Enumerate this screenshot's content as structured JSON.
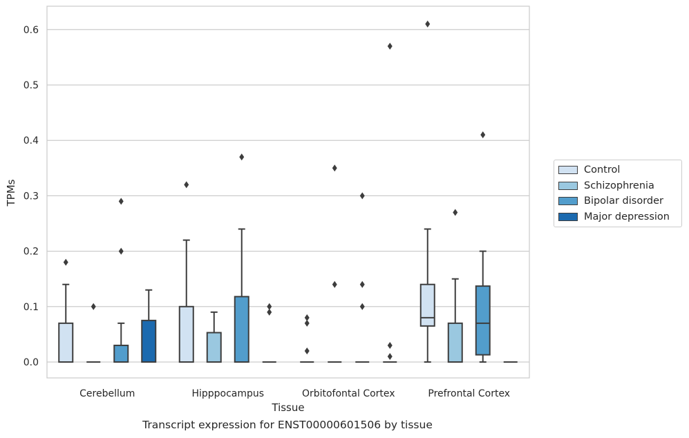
{
  "chart_data": {
    "type": "box",
    "title": "",
    "xlabel": "Tissue",
    "ylabel": "TPMs",
    "ylim": [
      -0.03,
      0.645
    ],
    "yticks": [
      0.0,
      0.1,
      0.2,
      0.3,
      0.4,
      0.5,
      0.6
    ],
    "ytick_labels": [
      "0.0",
      "0.1",
      "0.2",
      "0.3",
      "0.4",
      "0.5",
      "0.6"
    ],
    "grid": "horizontal",
    "legend_position": "right",
    "categories": [
      "Cerebellum",
      "Hipppocampus",
      "Orbitofontal Cortex",
      "Prefrontal Cortex"
    ],
    "series": [
      {
        "name": "Control",
        "color": "#d1e2f2",
        "boxes": [
          {
            "whislo": 0.0,
            "q1": 0.0,
            "med": 0.0,
            "q3": 0.07,
            "whishi": 0.14,
            "fliers": [
              0.18
            ]
          },
          {
            "whislo": 0.0,
            "q1": 0.0,
            "med": 0.0,
            "q3": 0.1,
            "whishi": 0.22,
            "fliers": [
              0.32
            ]
          },
          {
            "whislo": 0.0,
            "q1": 0.0,
            "med": 0.0,
            "q3": 0.0,
            "whishi": 0.0,
            "fliers": [
              0.02,
              0.07,
              0.08
            ]
          },
          {
            "whislo": 0.0,
            "q1": 0.065,
            "med": 0.08,
            "q3": 0.14,
            "whishi": 0.24,
            "fliers": [
              0.61
            ]
          }
        ]
      },
      {
        "name": "Schizophrenia",
        "color": "#9ac8e0",
        "boxes": [
          {
            "whislo": 0.0,
            "q1": 0.0,
            "med": 0.0,
            "q3": 0.0,
            "whishi": 0.0,
            "fliers": [
              0.1
            ]
          },
          {
            "whislo": 0.0,
            "q1": 0.0,
            "med": 0.0,
            "q3": 0.053,
            "whishi": 0.09,
            "fliers": []
          },
          {
            "whislo": 0.0,
            "q1": 0.0,
            "med": 0.0,
            "q3": 0.0,
            "whishi": 0.0,
            "fliers": [
              0.14,
              0.35
            ]
          },
          {
            "whislo": 0.0,
            "q1": 0.0,
            "med": 0.0,
            "q3": 0.07,
            "whishi": 0.15,
            "fliers": [
              0.27
            ]
          }
        ]
      },
      {
        "name": "Bipolar disorder",
        "color": "#529dcc",
        "boxes": [
          {
            "whislo": 0.0,
            "q1": 0.0,
            "med": 0.0,
            "q3": 0.03,
            "whishi": 0.07,
            "fliers": [
              0.2,
              0.29
            ]
          },
          {
            "whislo": 0.0,
            "q1": 0.0,
            "med": 0.0,
            "q3": 0.118,
            "whishi": 0.24,
            "fliers": [
              0.37
            ]
          },
          {
            "whislo": 0.0,
            "q1": 0.0,
            "med": 0.0,
            "q3": 0.0,
            "whishi": 0.0,
            "fliers": [
              0.1,
              0.14,
              0.3
            ]
          },
          {
            "whislo": 0.0,
            "q1": 0.013,
            "med": 0.07,
            "q3": 0.137,
            "whishi": 0.2,
            "fliers": [
              0.41
            ]
          }
        ]
      },
      {
        "name": "Major depression",
        "color": "#1c6aaf",
        "boxes": [
          {
            "whislo": 0.0,
            "q1": 0.0,
            "med": 0.0,
            "q3": 0.075,
            "whishi": 0.13,
            "fliers": []
          },
          {
            "whislo": 0.0,
            "q1": 0.0,
            "med": 0.0,
            "q3": 0.0,
            "whishi": 0.0,
            "fliers": [
              0.09,
              0.1
            ]
          },
          {
            "whislo": 0.0,
            "q1": 0.0,
            "med": 0.0,
            "q3": 0.0,
            "whishi": 0.0,
            "fliers": [
              0.01,
              0.03,
              0.57
            ]
          },
          {
            "whislo": 0.0,
            "q1": 0.0,
            "med": 0.0,
            "q3": 0.0,
            "whishi": 0.0,
            "fliers": []
          }
        ]
      }
    ],
    "caption": "Transcript expression for ENST00000601506 by tissue"
  }
}
